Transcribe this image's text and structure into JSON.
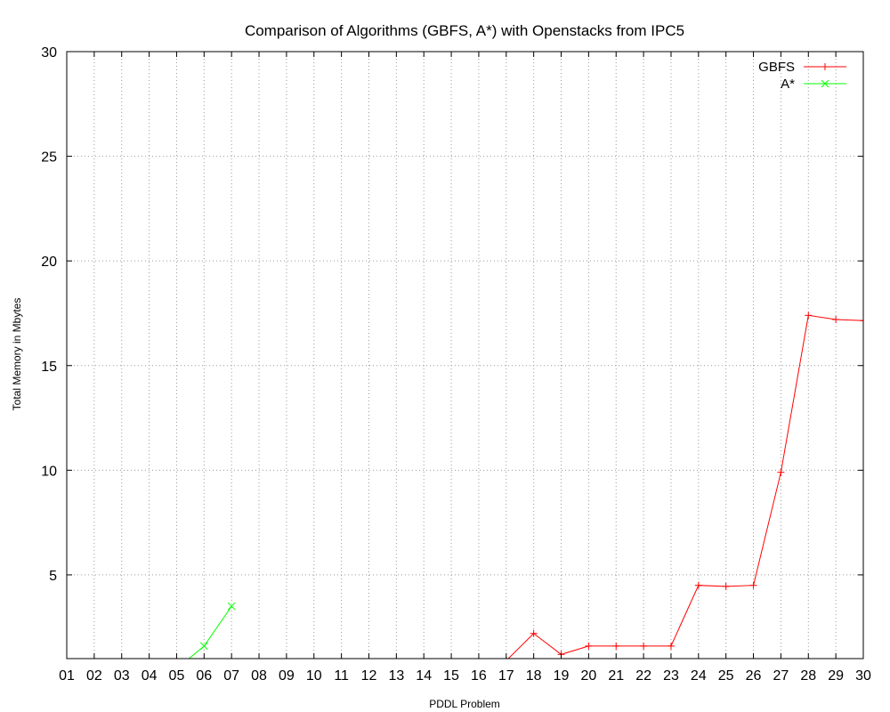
{
  "chart_data": {
    "type": "line",
    "title": "Comparison of Algorithms (GBFS, A*) with Openstacks from IPC5",
    "xlabel": "PDDL Problem",
    "ylabel": "Total Memory in Mbytes",
    "categories": [
      "01",
      "02",
      "03",
      "04",
      "05",
      "06",
      "07",
      "08",
      "09",
      "10",
      "11",
      "12",
      "13",
      "14",
      "15",
      "16",
      "17",
      "18",
      "19",
      "20",
      "21",
      "22",
      "23",
      "24",
      "25",
      "26",
      "27",
      "28",
      "29",
      "30"
    ],
    "ylim": [
      1,
      30
    ],
    "yticks": [
      5,
      10,
      15,
      20,
      25,
      30
    ],
    "grid": true,
    "legend_position": "top-right",
    "series": [
      {
        "name": "GBFS",
        "color": "#ff0000",
        "marker": "plus",
        "values": [
          null,
          null,
          null,
          null,
          null,
          null,
          null,
          null,
          null,
          null,
          null,
          null,
          null,
          null,
          null,
          null,
          0.9,
          2.2,
          1.2,
          1.6,
          1.6,
          1.6,
          1.6,
          4.5,
          4.45,
          4.5,
          9.9,
          17.4,
          17.2,
          17.15
        ]
      },
      {
        "name": "A*",
        "color": "#00ff00",
        "marker": "cross",
        "values": [
          null,
          null,
          null,
          null,
          0.5,
          1.6,
          3.5,
          null,
          null,
          null,
          null,
          null,
          null,
          null,
          null,
          null,
          null,
          null,
          null,
          null,
          null,
          null,
          null,
          null,
          null,
          null,
          null,
          null,
          null,
          null
        ]
      }
    ]
  }
}
